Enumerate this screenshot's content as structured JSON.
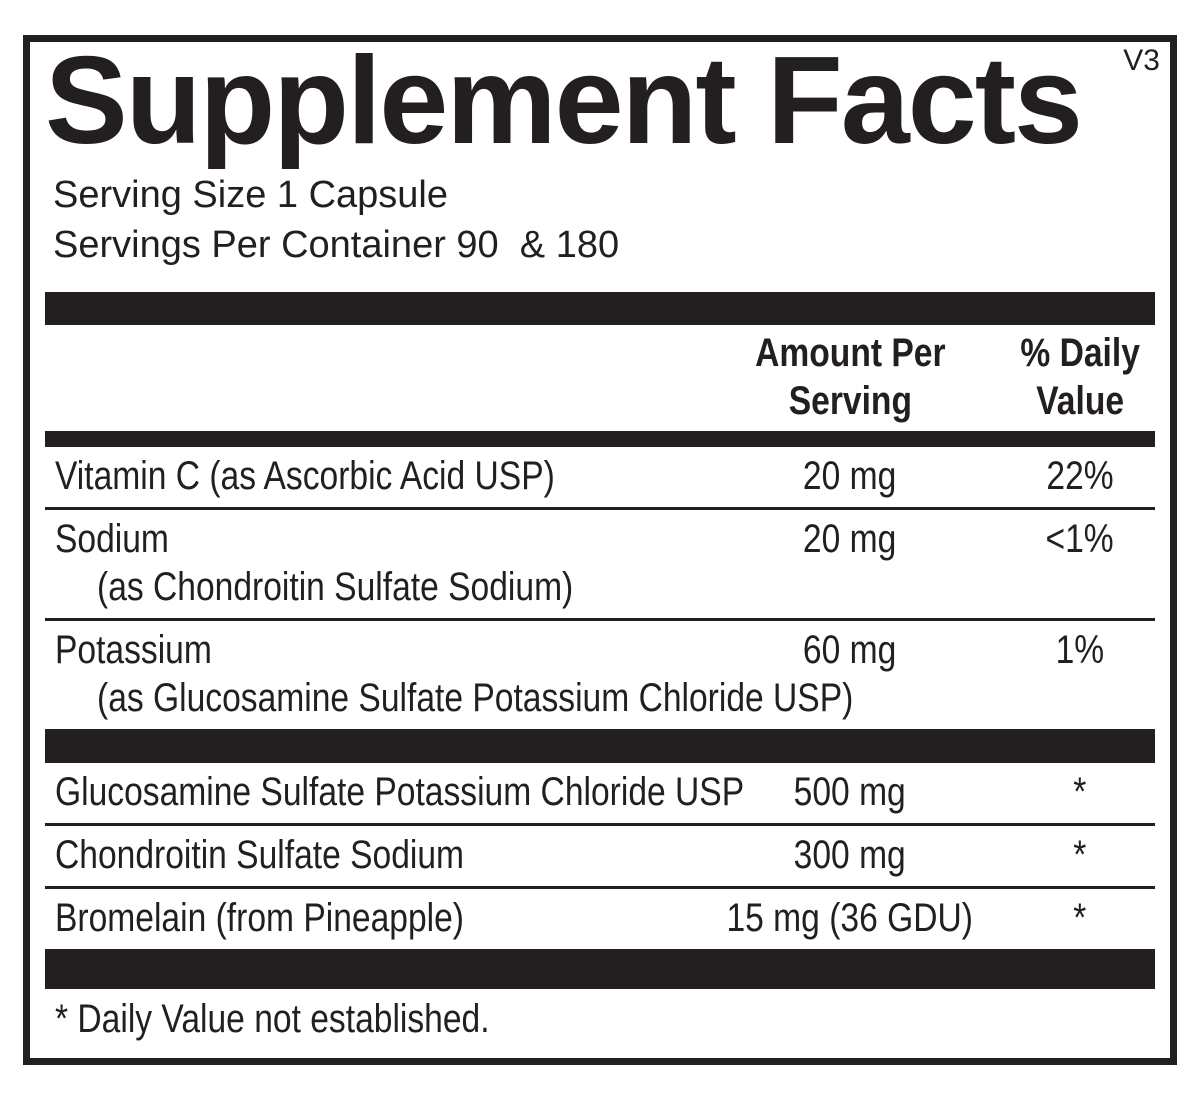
{
  "label": {
    "version": "V3",
    "title": "Supplement Facts",
    "serving_size": "Serving Size 1 Capsule",
    "servings_per_container": "Servings Per Container 90  & 180",
    "columns": {
      "amount_header_line1": "Amount Per",
      "amount_header_line2": "Serving",
      "dv_header_line1": "% Daily",
      "dv_header_line2": "Value"
    },
    "nutrients": [
      {
        "name": "Vitamin C (as Ascorbic Acid USP)",
        "detail": "",
        "amount": "20 mg",
        "daily_value": "22%"
      },
      {
        "name": "Sodium",
        "detail": "(as Chondroitin Sulfate Sodium)",
        "amount": "20 mg",
        "daily_value": "<1%"
      },
      {
        "name": "Potassium",
        "detail": "(as Glucosamine Sulfate Potassium Chloride USP)",
        "amount": "60 mg",
        "daily_value": "1%"
      }
    ],
    "ingredients": [
      {
        "name": "Glucosamine Sulfate Potassium Chloride USP",
        "amount": "500 mg",
        "daily_value": "*"
      },
      {
        "name": "Chondroitin Sulfate Sodium",
        "amount": "300 mg",
        "daily_value": "*"
      },
      {
        "name": "Bromelain (from Pineapple)",
        "amount": "15 mg (36 GDU)",
        "daily_value": "*"
      }
    ],
    "footnote": "* Daily Value not established.",
    "colors": {
      "ink": "#231f20",
      "background": "#ffffff"
    }
  }
}
